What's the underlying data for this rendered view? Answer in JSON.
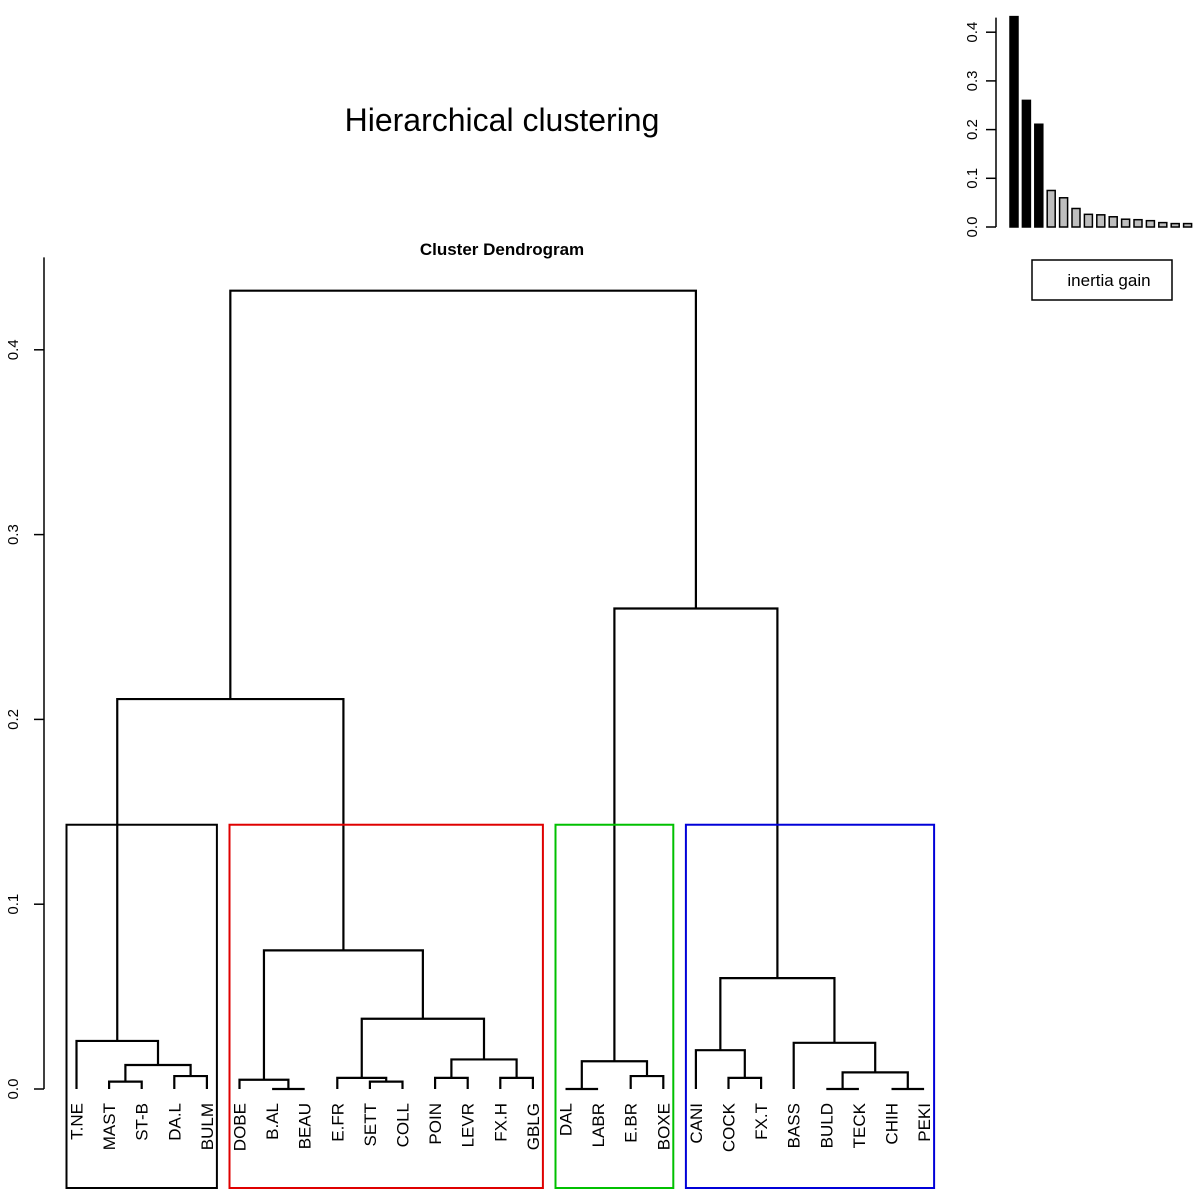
{
  "page": {
    "title": "Hierarchical clustering"
  },
  "chart_data": [
    {
      "type": "dendrogram",
      "title": "Cluster Dendrogram",
      "ylim": [
        0,
        0.45
      ],
      "yticks": [
        0,
        0.1,
        0.2,
        0.3,
        0.4
      ],
      "ytick_labels": [
        "0.0",
        "0.1",
        "0.2",
        "0.3",
        "0.4"
      ],
      "leaves": [
        "T.NE",
        "MAST",
        "ST-B",
        "DA.L",
        "BULM",
        "DOBE",
        "B.AL",
        "BEAU",
        "E.FR",
        "SETT",
        "COLL",
        "POIN",
        "LEVR",
        "FX.H",
        "GBLG",
        "DAL",
        "LABR",
        "E.BR",
        "BOXE",
        "CANI",
        "COCK",
        "FX.T",
        "BASS",
        "BULD",
        "TECK",
        "CHIH",
        "PEKI"
      ],
      "merges": [
        {
          "children": [
            "MAST",
            "ST-B"
          ],
          "height": 0.004
        },
        {
          "children": [
            "DA.L",
            "BULM"
          ],
          "height": 0.007
        },
        {
          "children": [
            [
              "MAST",
              "ST-B"
            ],
            [
              "DA.L",
              "BULM"
            ]
          ],
          "height": 0.013
        },
        {
          "children": [
            "T.NE",
            [
              [
                "MAST",
                "ST-B"
              ],
              [
                "DA.L",
                "BULM"
              ]
            ]
          ],
          "height": 0.026
        },
        {
          "children": [
            "B.AL",
            "BEAU"
          ],
          "height": 0.0
        },
        {
          "children": [
            "DOBE",
            [
              "B.AL",
              "BEAU"
            ]
          ],
          "height": 0.005
        },
        {
          "children": [
            "SETT",
            "COLL"
          ],
          "height": 0.004
        },
        {
          "children": [
            "E.FR",
            [
              "SETT",
              "COLL"
            ]
          ],
          "height": 0.006
        },
        {
          "children": [
            "POIN",
            "LEVR"
          ],
          "height": 0.006
        },
        {
          "children": [
            "FX.H",
            "GBLG"
          ],
          "height": 0.006
        },
        {
          "children": [
            [
              "POIN",
              "LEVR"
            ],
            [
              "FX.H",
              "GBLG"
            ]
          ],
          "height": 0.016
        },
        {
          "children": [
            [
              "E.FR",
              [
                "SETT",
                "COLL"
              ]
            ],
            [
              [
                "POIN",
                "LEVR"
              ],
              [
                "FX.H",
                "GBLG"
              ]
            ]
          ],
          "height": 0.038
        },
        {
          "children": [
            [
              "DOBE",
              [
                "B.AL",
                "BEAU"
              ]
            ],
            "E.FR...GBLG"
          ],
          "height": 0.075
        },
        {
          "children": [
            "T.NE...BULM",
            "DOBE...GBLG"
          ],
          "height": 0.211
        },
        {
          "children": [
            "DAL",
            "LABR"
          ],
          "height": 0.0
        },
        {
          "children": [
            "E.BR",
            "BOXE"
          ],
          "height": 0.007
        },
        {
          "children": [
            [
              "DAL",
              "LABR"
            ],
            [
              "E.BR",
              "BOXE"
            ]
          ],
          "height": 0.015
        },
        {
          "children": [
            "COCK",
            "FX.T"
          ],
          "height": 0.006
        },
        {
          "children": [
            "CANI",
            [
              "COCK",
              "FX.T"
            ]
          ],
          "height": 0.021
        },
        {
          "children": [
            "BULD",
            "TECK"
          ],
          "height": 0.0
        },
        {
          "children": [
            "CHIH",
            "PEKI"
          ],
          "height": 0.0
        },
        {
          "children": [
            [
              "BULD",
              "TECK"
            ],
            [
              "CHIH",
              "PEKI"
            ]
          ],
          "height": 0.009
        },
        {
          "children": [
            "BASS",
            [
              [
                "BULD",
                "TECK"
              ],
              [
                "CHIH",
                "PEKI"
              ]
            ]
          ],
          "height": 0.025
        },
        {
          "children": [
            [
              "CANI",
              [
                "COCK",
                "FX.T"
              ]
            ],
            "BASS...PEKI"
          ],
          "height": 0.06
        },
        {
          "children": [
            "DAL...BOXE",
            "CANI...PEKI"
          ],
          "height": 0.26
        },
        {
          "children": [
            "T.NE...GBLG",
            "DAL...PEKI"
          ],
          "height": 0.432
        }
      ],
      "cut_height": 0.143,
      "clusters": [
        {
          "leaves": [
            "T.NE",
            "MAST",
            "ST-B",
            "DA.L",
            "BULM"
          ],
          "color": "#000000"
        },
        {
          "leaves": [
            "DOBE",
            "B.AL",
            "BEAU",
            "E.FR",
            "SETT",
            "COLL",
            "POIN",
            "LEVR",
            "FX.H",
            "GBLG"
          ],
          "color": "#df0000"
        },
        {
          "leaves": [
            "DAL",
            "LABR",
            "E.BR",
            "BOXE"
          ],
          "color": "#00c000"
        },
        {
          "leaves": [
            "CANI",
            "COCK",
            "FX.T",
            "BASS",
            "BULD",
            "TECK",
            "CHIH",
            "PEKI"
          ],
          "color": "#0000d8"
        }
      ]
    },
    {
      "type": "bar",
      "values": [
        0.432,
        0.26,
        0.211,
        0.075,
        0.06,
        0.038,
        0.026,
        0.025,
        0.021,
        0.016,
        0.015,
        0.013,
        0.009,
        0.007,
        0.007
      ],
      "highlight_count": 3,
      "colors": {
        "highlight": "#000000",
        "other": "#bebebe"
      },
      "ylim": [
        0,
        0.43
      ],
      "yticks": [
        0,
        0.1,
        0.2,
        0.3,
        0.4
      ],
      "ytick_labels": [
        "0.0",
        "0.1",
        "0.2",
        "0.3",
        "0.4"
      ],
      "legend": [
        "inertia gain"
      ]
    }
  ]
}
